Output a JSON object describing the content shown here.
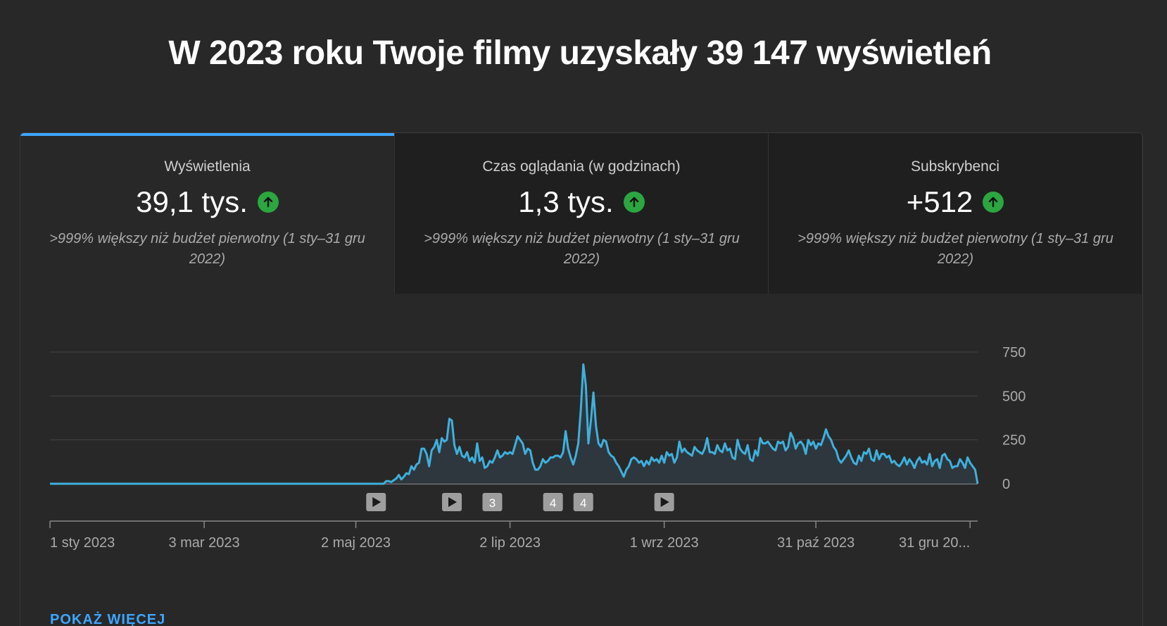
{
  "headline": "W 2023 roku Twoje filmy uzyskały 39 147 wyświetleń",
  "tabs": [
    {
      "label": "Wyświetlenia",
      "value": "39,1 tys.",
      "note": ">999% większy niż budżet pierwotny (1 sty–31 gru 2022)",
      "trend": "up"
    },
    {
      "label": "Czas oglądania (w godzinach)",
      "value": "1,3 tys.",
      "note": ">999% większy niż budżet pierwotny (1 sty–31 gru 2022)",
      "trend": "up"
    },
    {
      "label": "Subskrybenci",
      "value": "+512",
      "note": ">999% większy niż budżet pierwotny (1 sty–31 gru 2022)",
      "trend": "up"
    }
  ],
  "active_tab": 0,
  "colors": {
    "accent": "#3ea6ff",
    "line": "#3fb0dc",
    "trend_up": "#2ba640"
  },
  "show_more": "POKAŻ WIĘCEJ",
  "chart_data": {
    "type": "area",
    "x_start": "1 sty 2023",
    "x_end": "31 gru 2023",
    "x_tick_labels": [
      "1 sty 2023",
      "3 mar 2023",
      "2 maj 2023",
      "2 lip 2023",
      "1 wrz 2023",
      "31 paź 2023",
      "31 gru 20..."
    ],
    "y_ticks": [
      0,
      250,
      500,
      750
    ],
    "ylim": [
      0,
      750
    ],
    "grid": true,
    "series": [
      {
        "values": [
          0,
          0,
          0,
          0,
          0,
          0,
          0,
          0,
          0,
          0,
          0,
          0,
          0,
          0,
          0,
          0,
          0,
          0,
          0,
          0,
          0,
          0,
          0,
          0,
          0,
          0,
          0,
          0,
          0,
          0,
          0,
          0,
          0,
          0,
          0,
          0,
          0,
          0,
          0,
          0,
          0,
          0,
          0,
          0,
          0,
          0,
          0,
          0,
          0,
          0,
          0,
          0,
          0,
          0,
          0,
          0,
          0,
          0,
          0,
          0,
          0,
          0,
          0,
          0,
          0,
          0,
          0,
          0,
          0,
          0,
          0,
          0,
          0,
          0,
          0,
          0,
          0,
          0,
          0,
          0,
          0,
          0,
          0,
          0,
          0,
          0,
          0,
          0,
          0,
          0,
          0,
          0,
          0,
          0,
          0,
          0,
          0,
          0,
          0,
          0,
          0,
          0,
          0,
          0,
          0,
          0,
          0,
          0,
          0,
          0,
          0,
          0,
          0,
          0,
          0,
          0,
          0,
          0,
          0,
          0,
          0,
          0,
          0,
          0,
          0,
          0,
          0,
          0,
          0,
          0,
          0,
          0,
          0,
          15,
          15,
          10,
          20,
          30,
          50,
          25,
          40,
          60,
          55,
          100,
          80,
          110,
          120,
          200,
          200,
          170,
          100,
          190,
          210,
          250,
          180,
          260,
          240,
          250,
          370,
          360,
          220,
          170,
          210,
          160,
          150,
          180,
          130,
          150,
          120,
          230,
          130,
          150,
          90,
          100,
          130,
          120,
          150,
          190,
          150,
          160,
          180,
          170,
          180,
          170,
          220,
          270,
          250,
          230,
          170,
          200,
          190,
          120,
          80,
          80,
          100,
          140,
          120,
          130,
          150,
          150,
          160,
          160,
          150,
          180,
          300,
          200,
          150,
          110,
          160,
          230,
          420,
          680,
          560,
          230,
          360,
          520,
          330,
          230,
          210,
          250,
          240,
          180,
          160,
          150,
          120,
          100,
          70,
          40,
          80,
          100,
          140,
          150,
          140,
          120,
          130,
          100,
          130,
          110,
          150,
          130,
          140,
          120,
          160,
          120,
          180,
          160,
          170,
          120,
          150,
          240,
          180,
          200,
          180,
          170,
          160,
          210,
          190,
          180,
          170,
          200,
          260,
          180,
          180,
          170,
          220,
          190,
          180,
          230,
          190,
          200,
          150,
          140,
          250,
          200,
          180,
          170,
          220,
          140,
          130,
          190,
          160,
          260,
          230,
          230,
          240,
          220,
          200,
          190,
          240,
          230,
          240,
          190,
          210,
          290,
          260,
          200,
          230,
          240,
          220,
          170,
          250,
          220,
          240,
          200,
          230,
          220,
          260,
          310,
          270,
          250,
          210,
          190,
          140,
          120,
          140,
          160,
          190,
          150,
          120,
          110,
          160,
          130,
          180,
          170,
          200,
          140,
          130,
          190,
          140,
          170,
          170,
          150,
          160,
          120,
          130,
          110,
          100,
          120,
          150,
          110,
          140,
          120,
          90,
          130,
          150,
          120,
          130,
          110,
          170,
          100,
          130,
          140,
          90,
          160,
          170,
          140,
          130,
          90,
          100,
          100,
          140,
          120,
          90,
          150,
          120,
          100,
          80,
          0
        ]
      }
    ],
    "events": [
      {
        "type": "play",
        "label": ""
      },
      {
        "type": "play",
        "label": ""
      },
      {
        "type": "count",
        "label": "3"
      },
      {
        "type": "count",
        "label": "4"
      },
      {
        "type": "count",
        "label": "4"
      },
      {
        "type": "play",
        "label": ""
      }
    ],
    "event_days": [
      129,
      159,
      175,
      199,
      211,
      243
    ]
  }
}
